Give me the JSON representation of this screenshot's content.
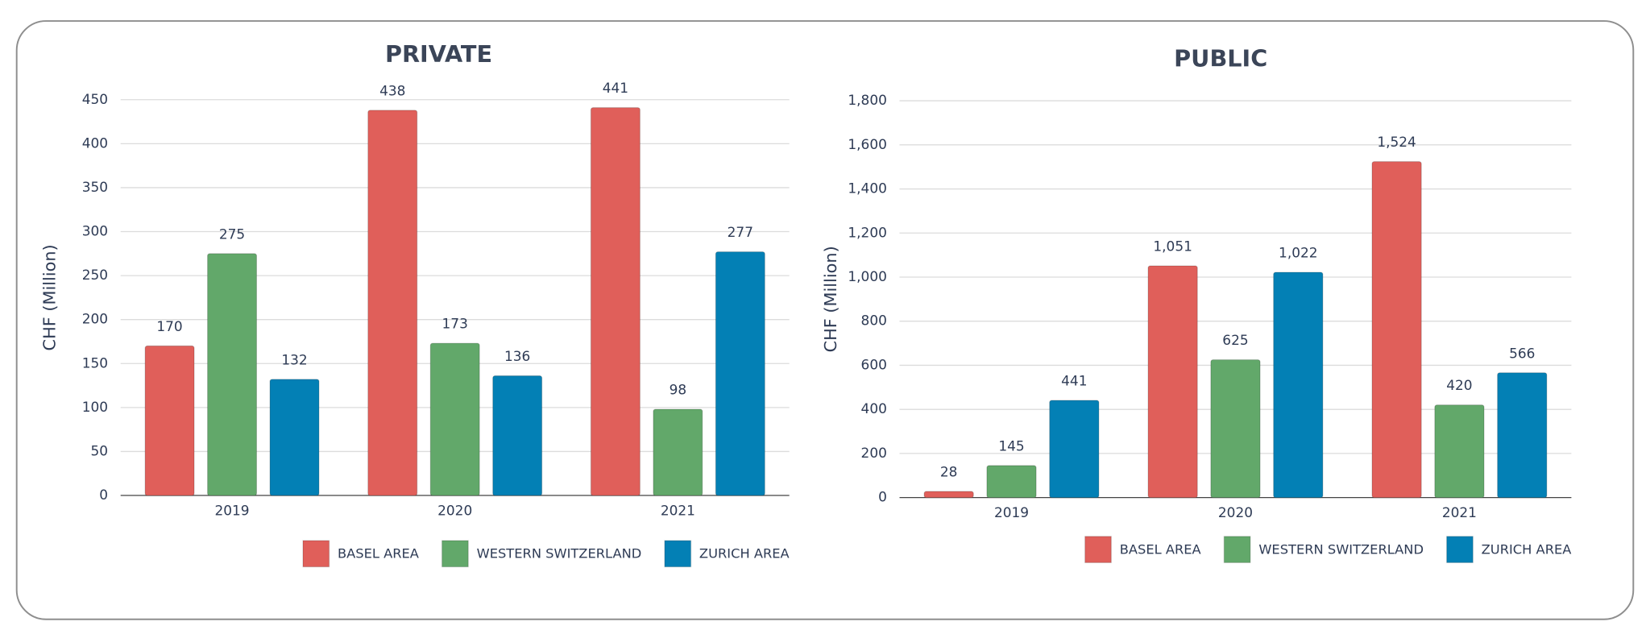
{
  "chart_data": [
    {
      "type": "bar",
      "title": "PRIVATE",
      "y_label": "CHF (Million)",
      "categories": [
        "2019",
        "2020",
        "2021"
      ],
      "series": [
        {
          "name": "BASEL AREA",
          "color": "#e05f5a",
          "values": [
            170,
            438,
            441
          ]
        },
        {
          "name": "WESTERN SWITZERLAND",
          "color": "#62a86a",
          "values": [
            275,
            173,
            98
          ]
        },
        {
          "name": "ZURICH AREA",
          "color": "#0380b5",
          "values": [
            132,
            136,
            277
          ]
        }
      ],
      "ylim": [
        0,
        450
      ],
      "yticks": [
        0,
        50,
        100,
        150,
        200,
        250,
        300,
        350,
        400,
        450
      ],
      "grid": true,
      "legend": "bottom-right"
    },
    {
      "type": "bar",
      "title": "PUBLIC",
      "y_label": "CHF (Million)",
      "categories": [
        "2019",
        "2020",
        "2021"
      ],
      "series": [
        {
          "name": "BASEL AREA",
          "color": "#e05f5a",
          "values": [
            28,
            1051,
            1524
          ],
          "value_labels": [
            "28",
            "1,051",
            "1,524"
          ]
        },
        {
          "name": "WESTERN SWITZERLAND",
          "color": "#62a86a",
          "values": [
            145,
            625,
            420
          ]
        },
        {
          "name": "ZURICH AREA",
          "color": "#0380b5",
          "values": [
            441,
            1022,
            566
          ],
          "value_labels": [
            "441",
            "1,022",
            "566"
          ]
        }
      ],
      "ylim": [
        0,
        1800
      ],
      "yticks": [
        0,
        200,
        400,
        600,
        800,
        {
          "value": 1000,
          "label": "1,000"
        },
        {
          "value": 1200,
          "label": "1,200"
        },
        {
          "value": 1400,
          "label": "1,400"
        },
        {
          "value": 1600,
          "label": "1,600"
        },
        {
          "value": 1800,
          "label": "1,800"
        }
      ],
      "grid": true,
      "legend": "bottom-right"
    }
  ]
}
